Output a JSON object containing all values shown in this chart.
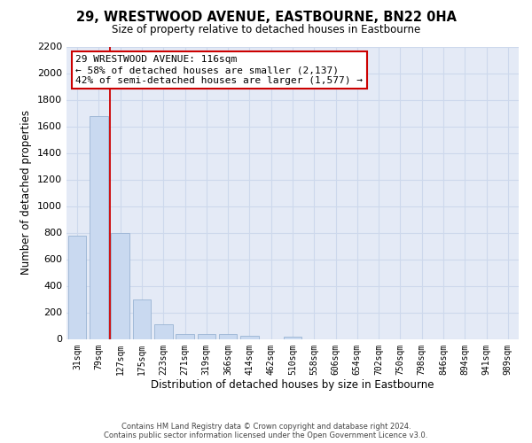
{
  "title": "29, WRESTWOOD AVENUE, EASTBOURNE, BN22 0HA",
  "subtitle": "Size of property relative to detached houses in Eastbourne",
  "xlabel": "Distribution of detached houses by size in Eastbourne",
  "ylabel": "Number of detached properties",
  "bar_labels": [
    "31sqm",
    "79sqm",
    "127sqm",
    "175sqm",
    "223sqm",
    "271sqm",
    "319sqm",
    "366sqm",
    "414sqm",
    "462sqm",
    "510sqm",
    "558sqm",
    "606sqm",
    "654sqm",
    "702sqm",
    "750sqm",
    "798sqm",
    "846sqm",
    "894sqm",
    "941sqm",
    "989sqm"
  ],
  "bar_values": [
    775,
    1680,
    795,
    295,
    110,
    35,
    35,
    35,
    25,
    0,
    20,
    0,
    0,
    0,
    0,
    0,
    0,
    0,
    0,
    0,
    0
  ],
  "bar_color": "#c9d9f0",
  "bar_edge_color": "#9ab4d4",
  "vline_x": 1.5,
  "vline_color": "#cc0000",
  "ylim": [
    0,
    2200
  ],
  "yticks": [
    0,
    200,
    400,
    600,
    800,
    1000,
    1200,
    1400,
    1600,
    1800,
    2000,
    2200
  ],
  "annotation_title": "29 WRESTWOOD AVENUE: 116sqm",
  "annotation_line1": "← 58% of detached houses are smaller (2,137)",
  "annotation_line2": "42% of semi-detached houses are larger (1,577) →",
  "footer_line1": "Contains HM Land Registry data © Crown copyright and database right 2024.",
  "footer_line2": "Contains public sector information licensed under the Open Government Licence v3.0.",
  "grid_color": "#cdd8ec",
  "background_color": "#e4eaf6"
}
